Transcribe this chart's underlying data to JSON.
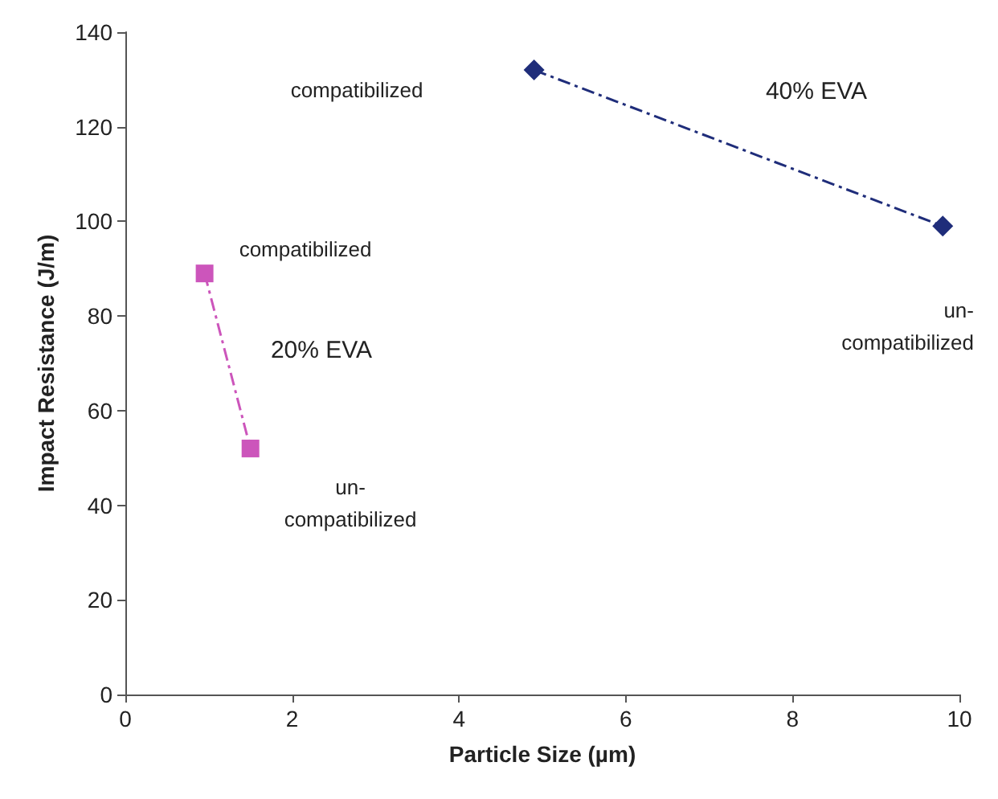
{
  "chart_data": {
    "type": "line",
    "xlabel": "Particle Size (µm)",
    "ylabel": "Impact Resistance (J/m)",
    "xlim": [
      0,
      10
    ],
    "xticks": [
      0,
      2,
      4,
      6,
      8,
      10
    ],
    "ylim": [
      0,
      140
    ],
    "yticks": [
      0,
      20,
      40,
      60,
      80,
      100,
      120,
      140
    ],
    "grid": false,
    "line_style": "dashed",
    "series": [
      {
        "color": "#1f2d7a",
        "marker": "diamond",
        "x": [
          4.9,
          9.8
        ],
        "values": [
          132,
          99
        ]
      },
      {
        "color": "#cc55bb",
        "marker": "square",
        "x": [
          0.95,
          1.5
        ],
        "values": [
          89,
          52
        ]
      }
    ],
    "annotations": [
      "compatibilized",
      "40% EVA",
      "un-\ncompatibilized",
      "compatibilized",
      "20% EVA",
      "un-\ncompatibilized"
    ]
  }
}
